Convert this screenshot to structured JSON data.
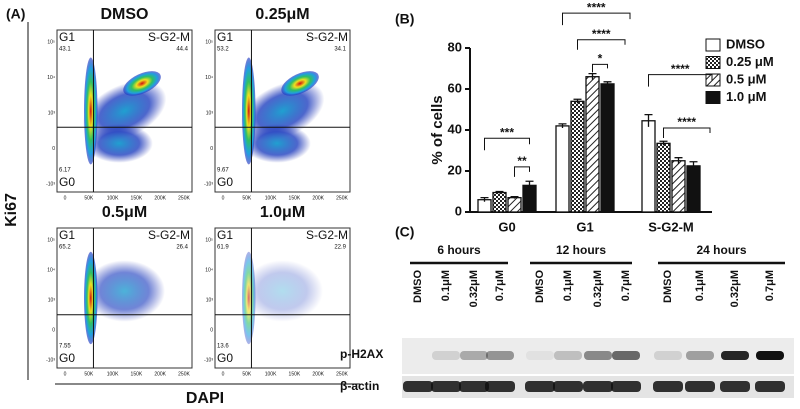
{
  "panel_a": {
    "label": "(A)",
    "y_label": "Ki67",
    "x_label": "DAPI",
    "xticks": [
      "0",
      "50K",
      "100K",
      "150K",
      "200K",
      "250K"
    ],
    "yticks": [
      "-10³",
      "0",
      "10³",
      "10⁴",
      "10⁵"
    ],
    "plots": [
      {
        "title": "DMSO",
        "g1": "G1",
        "g1_value": 43.1,
        "s": "S-G2-M",
        "s_value": 44.4,
        "g0": "G0",
        "g0_value": 6.17
      },
      {
        "title": "0.25μM",
        "g1": "G1",
        "g1_value": 53.2,
        "s": "S-G2-M",
        "s_value": 34.1,
        "g0": "G0",
        "g0_value": 9.67
      },
      {
        "title": "0.5μM",
        "g1": "G1",
        "g1_value": 65.2,
        "s": "S-G2-M",
        "s_value": 26.4,
        "g0": "G0",
        "g0_value": 7.55
      },
      {
        "title": "1.0μM",
        "g1": "G1",
        "g1_value": 61.9,
        "s": "S-G2-M",
        "s_value": 22.9,
        "g0": "G0",
        "g0_value": 13.6
      }
    ]
  },
  "chart_data": {
    "type": "bar",
    "label": "(B)",
    "y_label": "% of cells",
    "categories": [
      "G0",
      "G1",
      "S-G2-M"
    ],
    "series": [
      {
        "name": "DMSO",
        "color": "#ffffff",
        "values": [
          6,
          42,
          44.5
        ],
        "errors": [
          1,
          1,
          3
        ]
      },
      {
        "name": "0.25 μM",
        "color": "checker",
        "values": [
          9.5,
          54,
          33.5
        ],
        "errors": [
          0.5,
          1,
          1
        ]
      },
      {
        "name": "0.5 μM",
        "color": "hatch",
        "values": [
          7,
          66,
          25
        ],
        "errors": [
          0.5,
          1.5,
          1.5
        ]
      },
      {
        "name": "1.0 μM",
        "color": "#111111",
        "values": [
          13,
          62.5,
          22.5
        ],
        "errors": [
          2,
          1,
          2
        ]
      }
    ],
    "ylim": [
      0,
      80
    ],
    "yticks": [
      0,
      20,
      40,
      60,
      80
    ],
    "legend": "upper right",
    "annotations": [
      "***",
      "**",
      "****",
      "****",
      "*",
      "****",
      "****"
    ]
  },
  "panel_c": {
    "label": "(C)",
    "groups": [
      {
        "time": "6 hours",
        "lanes": [
          "DMSO",
          "0.1μM",
          "0.32μM",
          "0.7μM"
        ]
      },
      {
        "time": "12 hours",
        "lanes": [
          "DMSO",
          "0.1μM",
          "0.32μM",
          "0.7μM"
        ]
      },
      {
        "time": "24 hours",
        "lanes": [
          "DMSO",
          "0.1μM",
          "0.32μM",
          "0.7μM"
        ]
      }
    ],
    "rows": [
      "p-H2AX",
      "β-actin"
    ]
  }
}
